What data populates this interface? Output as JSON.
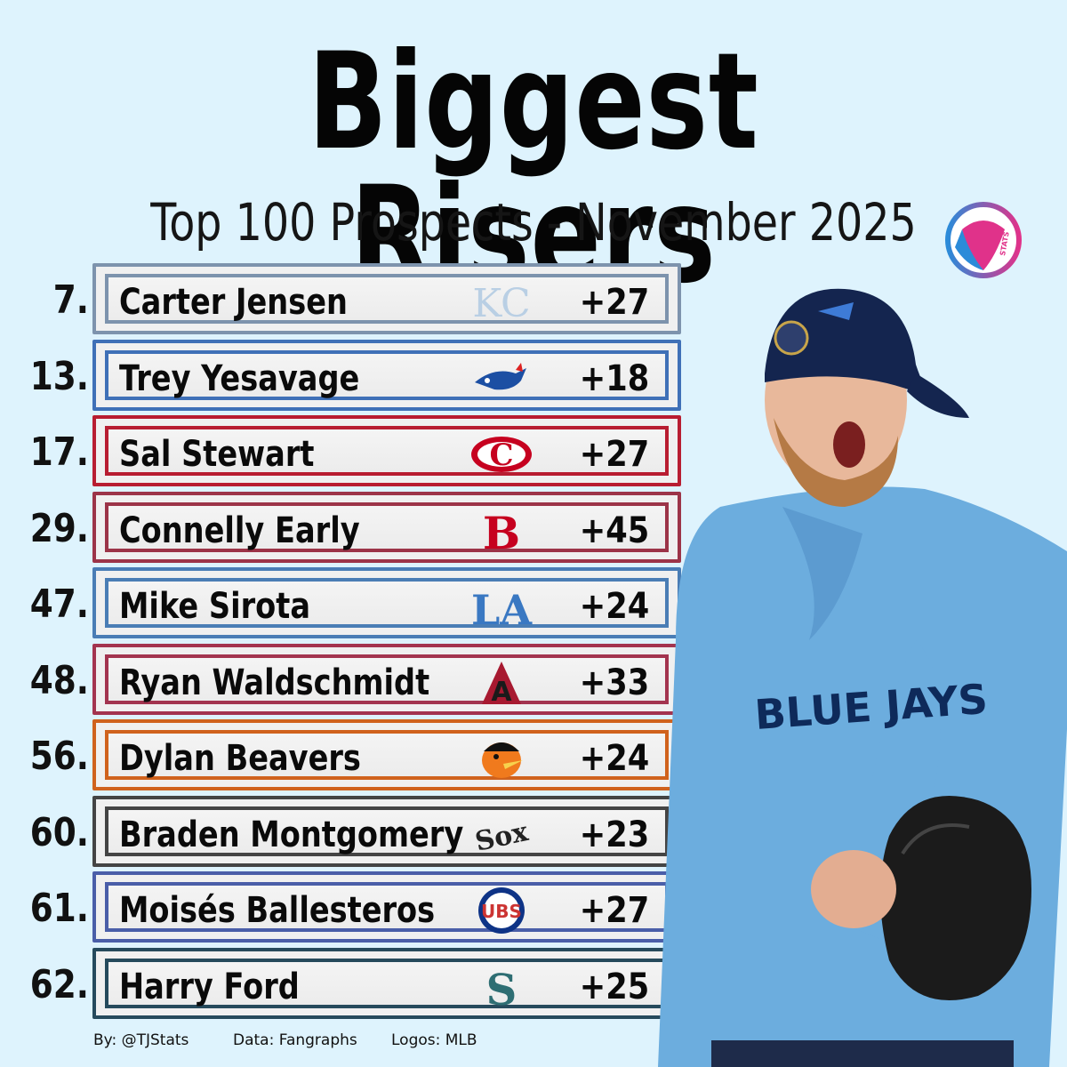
{
  "header": {
    "title": "Biggest Risers",
    "subtitle": "Top 100 Prospects - November 2025"
  },
  "brand": {
    "logo_text": "STATS",
    "colors": [
      "#2b8bd9",
      "#e0328a"
    ]
  },
  "prospects": [
    {
      "rank": "7.",
      "name": "Carter Jensen",
      "team_logo": "royals-logo",
      "change": "+27",
      "color": "#7d93ad"
    },
    {
      "rank": "13.",
      "name": "Trey Yesavage",
      "team_logo": "blue-jays-logo",
      "change": "+18",
      "color": "#3f70b7"
    },
    {
      "rank": "17.",
      "name": "Sal Stewart",
      "team_logo": "reds-logo",
      "change": "+27",
      "color": "#b81d31"
    },
    {
      "rank": "29.",
      "name": "Connelly Early",
      "team_logo": "red-sox-logo",
      "change": "+45",
      "color": "#9c3448"
    },
    {
      "rank": "47.",
      "name": "Mike Sirota",
      "team_logo": "dodgers-logo",
      "change": "+24",
      "color": "#4a7db5"
    },
    {
      "rank": "48.",
      "name": "Ryan Waldschmidt",
      "team_logo": "diamondbacks-logo",
      "change": "+33",
      "color": "#a3344f"
    },
    {
      "rank": "56.",
      "name": "Dylan Beavers",
      "team_logo": "orioles-logo",
      "change": "+24",
      "color": "#d0621d"
    },
    {
      "rank": "60.",
      "name": "Braden Montgomery",
      "team_logo": "white-sox-logo",
      "change": "+23",
      "color": "#444444"
    },
    {
      "rank": "61.",
      "name": "Moisés Ballesteros",
      "team_logo": "cubs-logo",
      "change": "+27",
      "color": "#4a5ea8"
    },
    {
      "rank": "62.",
      "name": "Harry Ford",
      "team_logo": "mariners-logo",
      "change": "+25",
      "color": "#264a5c"
    }
  ],
  "photo": {
    "jersey_text": "BLUE JAYS"
  },
  "footer": {
    "by": "By: @TJStats",
    "data": "Data: Fangraphs",
    "logos": "Logos: MLB"
  }
}
